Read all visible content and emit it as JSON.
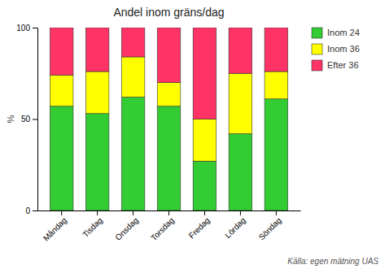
{
  "chart_data": {
    "type": "bar",
    "title": "Andel inom gräns/dag",
    "ylabel": "%",
    "categories": [
      "Måndag",
      "Tisdag",
      "Onsdag",
      "Torsdag",
      "Fredag",
      "Lördag",
      "Söndag"
    ],
    "series": [
      {
        "name": "Inom 24",
        "color": "#33cc33",
        "values": [
          57,
          53,
          62,
          57,
          27,
          42,
          61
        ]
      },
      {
        "name": "Inom 36",
        "color": "#ffff00",
        "values": [
          17,
          23,
          22,
          13,
          23,
          33,
          15
        ]
      },
      {
        "name": "Efter 36",
        "color": "#ff3366",
        "values": [
          26,
          24,
          16,
          30,
          50,
          25,
          24
        ]
      }
    ],
    "stacked": true,
    "ylim": [
      0,
      100
    ],
    "yticks": [
      0,
      50,
      100
    ],
    "grid": false,
    "legend": "right",
    "annotations": [
      "Källa: egen mätning UAS"
    ]
  }
}
